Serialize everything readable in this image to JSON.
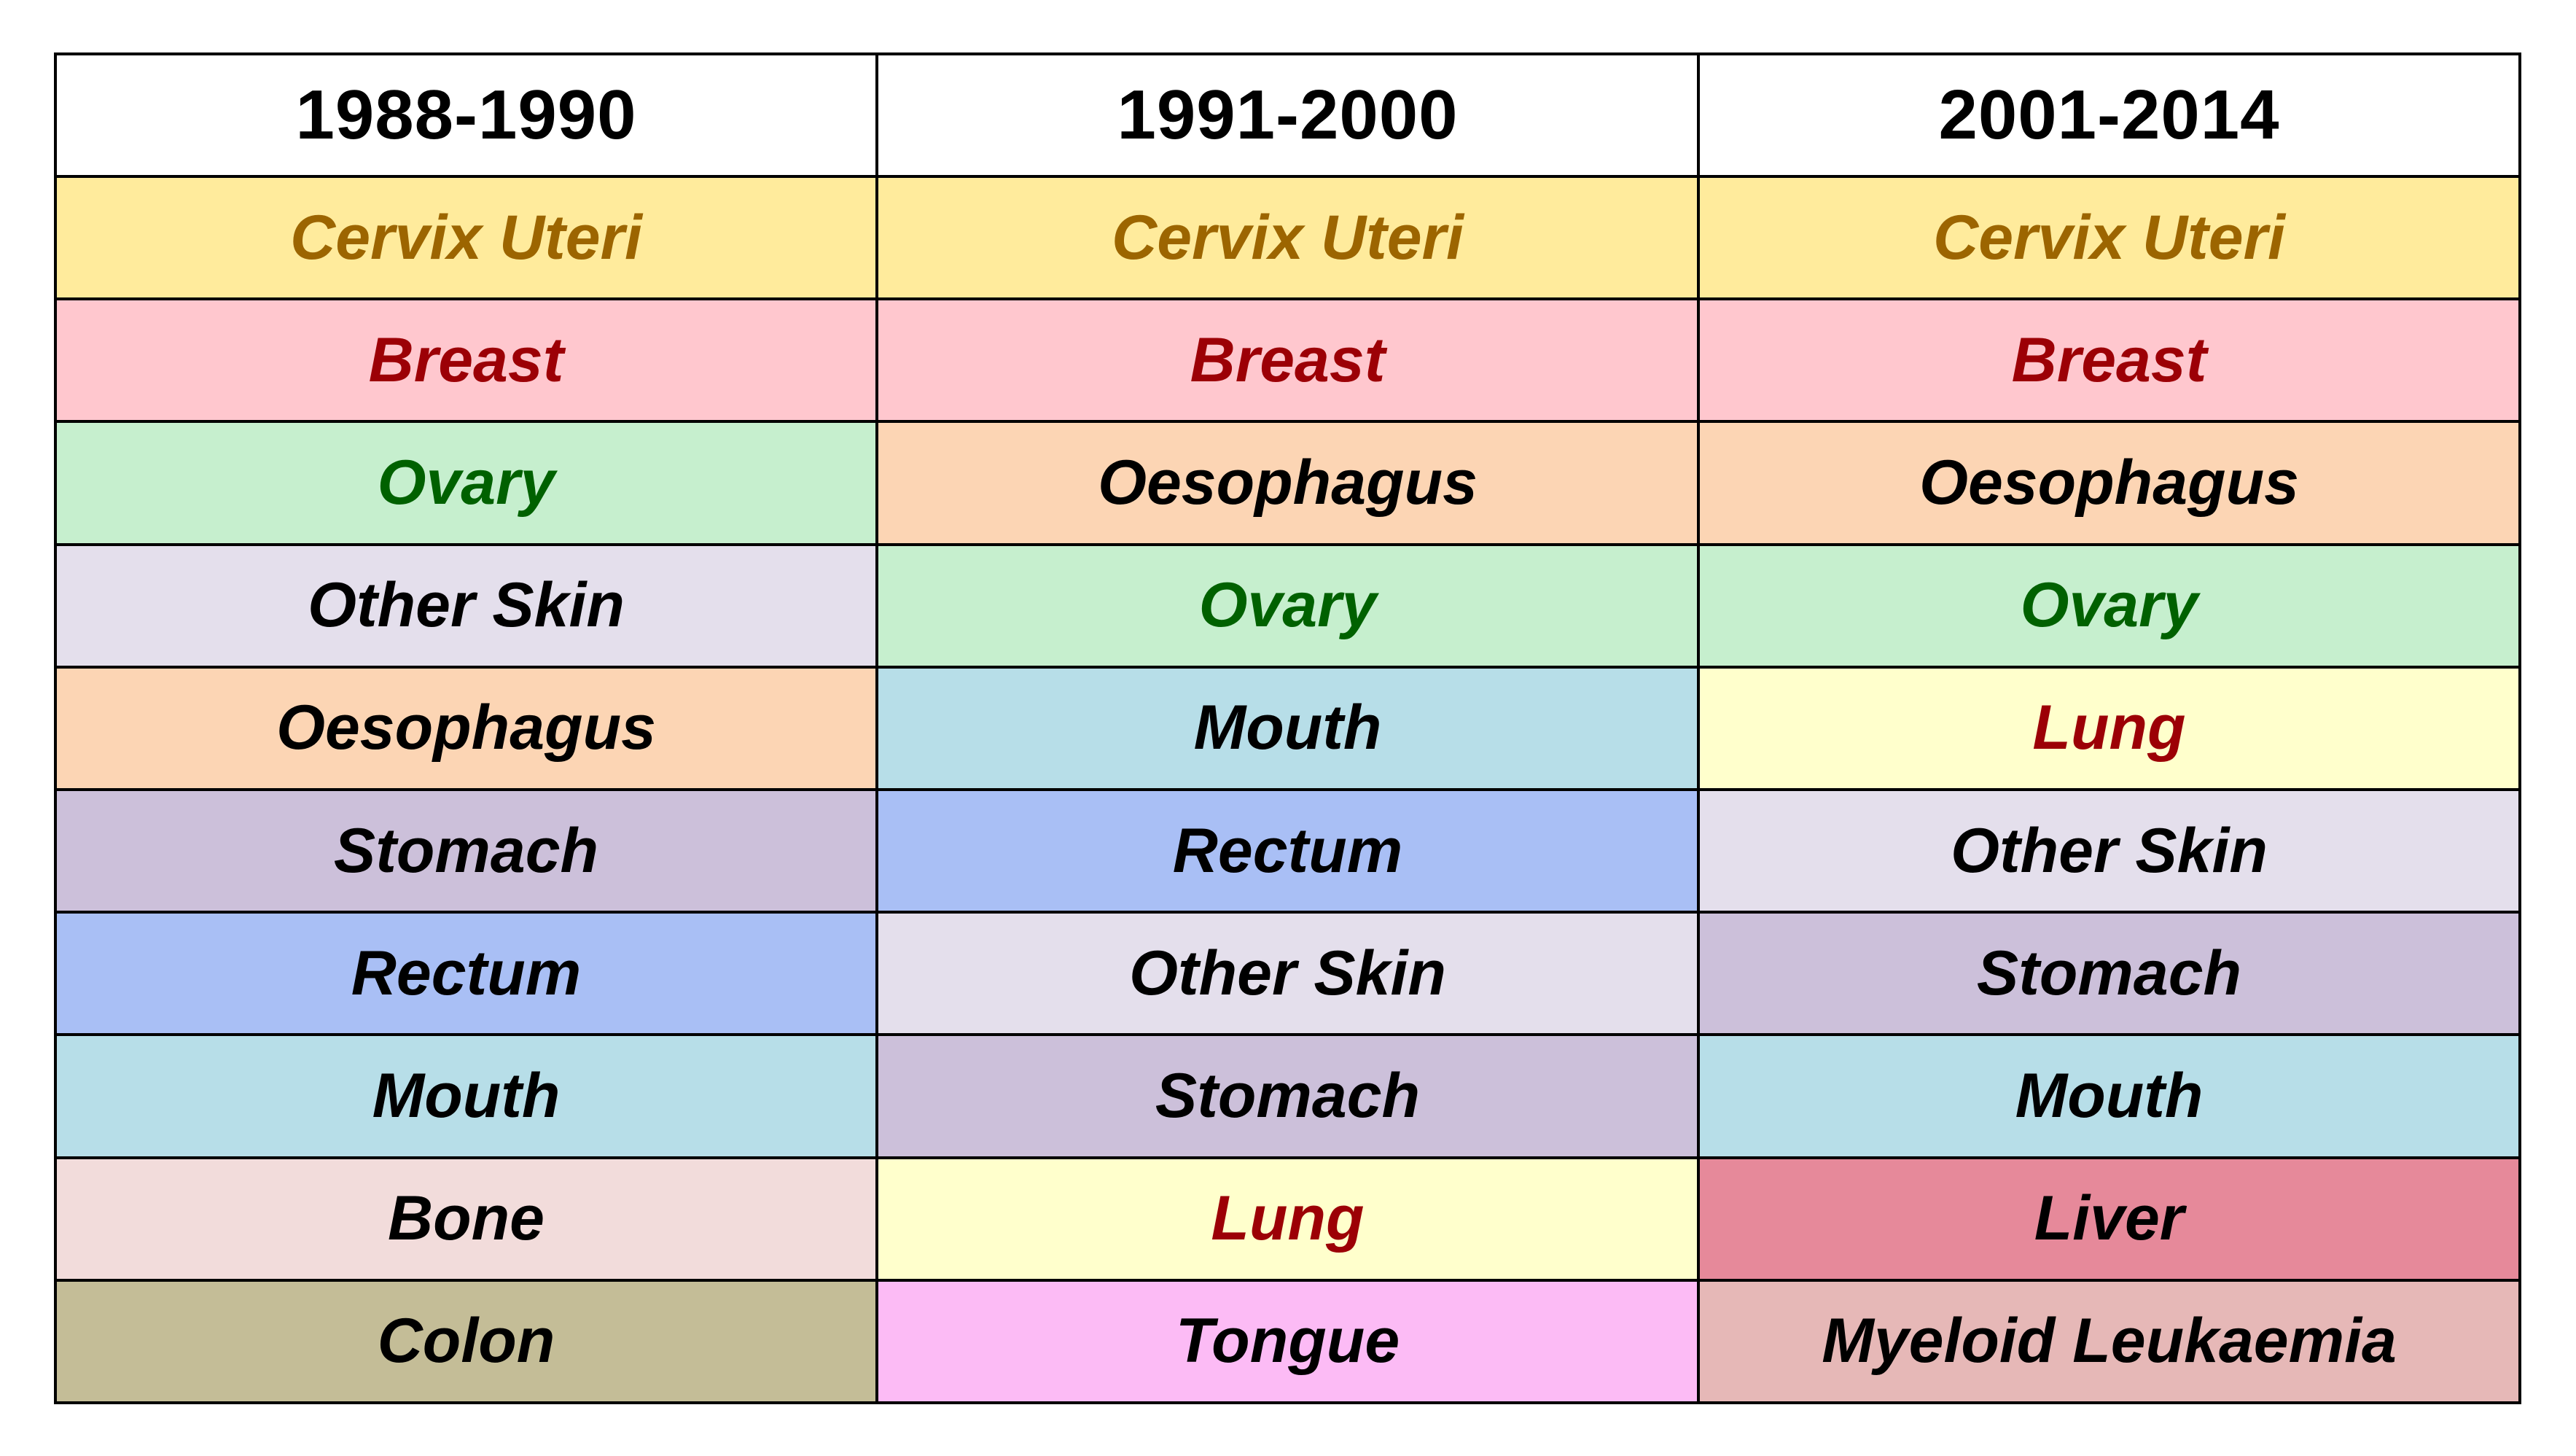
{
  "table": {
    "headers": [
      "1988-1990",
      "1991-2000",
      "2001-2014"
    ],
    "rows": [
      [
        {
          "text": "Cervix Uteri",
          "bg": "#FFEB9C",
          "color": "#9C6500"
        },
        {
          "text": "Cervix Uteri",
          "bg": "#FFEB9C",
          "color": "#9C6500"
        },
        {
          "text": "Cervix Uteri",
          "bg": "#FFEB9C",
          "color": "#9C6500"
        }
      ],
      [
        {
          "text": "Breast",
          "bg": "#FFC7CE",
          "color": "#9C0006"
        },
        {
          "text": "Breast",
          "bg": "#FFC7CE",
          "color": "#9C0006"
        },
        {
          "text": "Breast",
          "bg": "#FFC7CE",
          "color": "#9C0006"
        }
      ],
      [
        {
          "text": "Ovary",
          "bg": "#C6EFCE",
          "color": "#006100"
        },
        {
          "text": "Oesophagus",
          "bg": "#FCD5B4",
          "color": "#000000"
        },
        {
          "text": "Oesophagus",
          "bg": "#FCD5B4",
          "color": "#000000"
        }
      ],
      [
        {
          "text": "Other Skin",
          "bg": "#E4DFEC",
          "color": "#000000"
        },
        {
          "text": "Ovary",
          "bg": "#C6EFCE",
          "color": "#006100"
        },
        {
          "text": "Ovary",
          "bg": "#C6EFCE",
          "color": "#006100"
        }
      ],
      [
        {
          "text": "Oesophagus",
          "bg": "#FCD5B4",
          "color": "#000000"
        },
        {
          "text": "Mouth",
          "bg": "#B7DEE8",
          "color": "#000000"
        },
        {
          "text": "Lung",
          "bg": "#FFFFCC",
          "color": "#9C0006"
        }
      ],
      [
        {
          "text": "Stomach",
          "bg": "#CCC0DA",
          "color": "#000000"
        },
        {
          "text": "Rectum",
          "bg": "#A9BFF5",
          "color": "#000000"
        },
        {
          "text": "Other Skin",
          "bg": "#E4DFEC",
          "color": "#000000"
        }
      ],
      [
        {
          "text": "Rectum",
          "bg": "#A9BFF5",
          "color": "#000000"
        },
        {
          "text": "Other Skin",
          "bg": "#E4DFEC",
          "color": "#000000"
        },
        {
          "text": "Stomach",
          "bg": "#CCC0DA",
          "color": "#000000"
        }
      ],
      [
        {
          "text": "Mouth",
          "bg": "#B7DEE8",
          "color": "#000000"
        },
        {
          "text": "Stomach",
          "bg": "#CCC0DA",
          "color": "#000000"
        },
        {
          "text": "Mouth",
          "bg": "#B7DEE8",
          "color": "#000000"
        }
      ],
      [
        {
          "text": "Bone",
          "bg": "#F2DCDB",
          "color": "#000000"
        },
        {
          "text": "Lung",
          "bg": "#FFFFCC",
          "color": "#9C0006"
        },
        {
          "text": "Liver",
          "bg": "#E6899A",
          "color": "#000000"
        }
      ],
      [
        {
          "text": "Colon",
          "bg": "#C4BD97",
          "color": "#000000"
        },
        {
          "text": "Tongue",
          "bg": "#FCBBF5",
          "color": "#000000"
        },
        {
          "text": "Myeloid Leukaemia",
          "bg": "#E6B8B7",
          "color": "#000000"
        }
      ]
    ]
  }
}
